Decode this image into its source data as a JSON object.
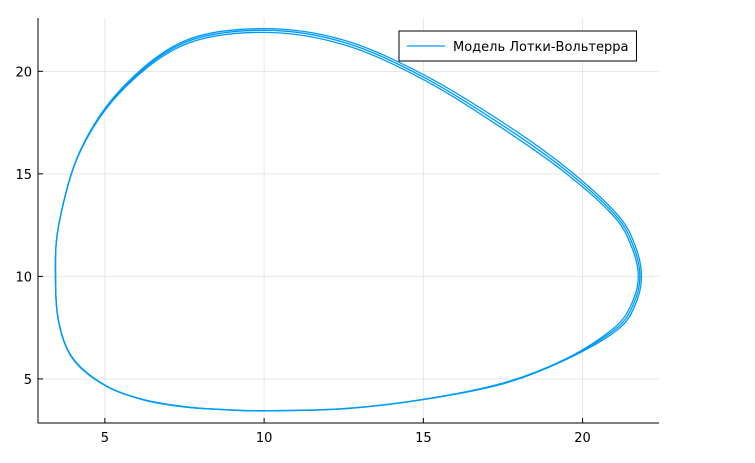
{
  "chart_data": {
    "type": "line",
    "title": "",
    "xlabel": "",
    "ylabel": "",
    "xlim": [
      2.9,
      22.4
    ],
    "ylim": [
      2.85,
      22.6
    ],
    "xticks": [
      5,
      10,
      15,
      20
    ],
    "yticks": [
      5,
      10,
      15,
      20
    ],
    "grid": true,
    "legend_position": "top-right",
    "colors": {
      "series": "#009af9",
      "grid": "#e6e6e6",
      "axis": "#000000"
    },
    "series": [
      {
        "name": "Модель Лотки-Вольтерра",
        "loops": [
          {
            "x": [
              10.0,
              12.5,
              15.0,
              17.5,
              19.5,
              21.0,
              21.55,
              21.75,
              21.55,
              21.0,
              19.5,
              17.5,
              15.0,
              12.5,
              10.0,
              7.5,
              5.5,
              4.2,
              3.55,
              3.45,
              3.55,
              4.0,
              5.0,
              6.2,
              7.5,
              8.8,
              10.0
            ],
            "y": [
              3.45,
              3.55,
              4.0,
              4.8,
              6.0,
              7.5,
              8.7,
              10.0,
              11.4,
              12.9,
              15.0,
              17.2,
              19.6,
              21.3,
              21.9,
              21.3,
              19.0,
              16.0,
              12.5,
              10.0,
              7.8,
              6.0,
              4.7,
              4.0,
              3.65,
              3.5,
              3.45
            ]
          },
          {
            "x": [
              10.0,
              12.5,
              15.0,
              17.5,
              19.5,
              21.05,
              21.6,
              21.8,
              21.6,
              21.05,
              19.55,
              17.55,
              15.0,
              12.5,
              10.0,
              7.5,
              5.5,
              4.2,
              3.55,
              3.45,
              3.55,
              4.0,
              5.0,
              6.2,
              7.5,
              8.8,
              10.0
            ],
            "y": [
              3.45,
              3.55,
              4.0,
              4.78,
              5.98,
              7.45,
              8.65,
              10.0,
              11.45,
              12.95,
              15.08,
              17.3,
              19.72,
              21.42,
              22.0,
              21.4,
              19.06,
              16.02,
              12.5,
              10.0,
              7.78,
              5.98,
              4.69,
              3.99,
              3.64,
              3.5,
              3.45
            ]
          },
          {
            "x": [
              10.0,
              12.5,
              15.0,
              17.5,
              19.5,
              21.1,
              21.65,
              21.85,
              21.65,
              21.1,
              19.6,
              17.6,
              15.0,
              12.5,
              10.0,
              7.5,
              5.5,
              4.2,
              3.55,
              3.45,
              3.55,
              4.0,
              5.0,
              6.2,
              7.5,
              8.8,
              10.0
            ],
            "y": [
              3.44,
              3.54,
              3.99,
              4.76,
              5.96,
              7.4,
              8.6,
              10.0,
              11.5,
              13.0,
              15.16,
              17.4,
              19.84,
              21.52,
              22.08,
              21.48,
              19.12,
              16.05,
              12.5,
              10.0,
              7.76,
              5.96,
              4.68,
              3.98,
              3.63,
              3.49,
              3.44
            ]
          }
        ]
      }
    ]
  }
}
